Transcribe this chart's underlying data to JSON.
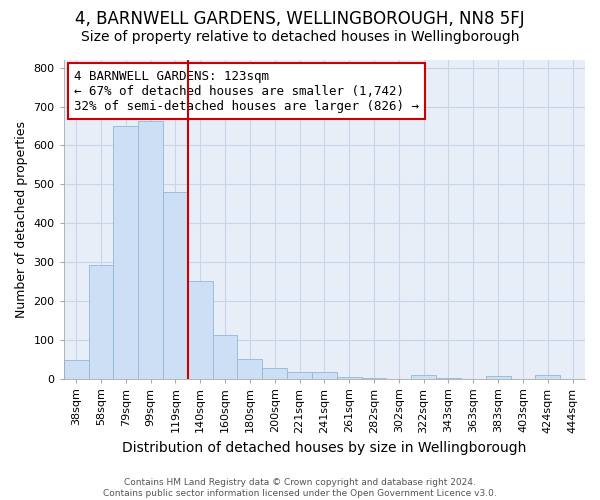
{
  "title": "4, BARNWELL GARDENS, WELLINGBOROUGH, NN8 5FJ",
  "subtitle": "Size of property relative to detached houses in Wellingborough",
  "xlabel": "Distribution of detached houses by size in Wellingborough",
  "ylabel": "Number of detached properties",
  "categories": [
    "38sqm",
    "58sqm",
    "79sqm",
    "99sqm",
    "119sqm",
    "140sqm",
    "160sqm",
    "180sqm",
    "200sqm",
    "221sqm",
    "241sqm",
    "261sqm",
    "282sqm",
    "302sqm",
    "322sqm",
    "343sqm",
    "363sqm",
    "383sqm",
    "403sqm",
    "424sqm",
    "444sqm"
  ],
  "values": [
    47,
    293,
    651,
    663,
    480,
    252,
    113,
    51,
    28,
    18,
    17,
    5,
    1,
    0,
    8,
    1,
    0,
    7,
    0,
    8,
    0
  ],
  "bar_color": "#ccdff5",
  "bar_edge_color": "#90b8d8",
  "grid_color": "#c8d4e8",
  "bg_color": "#e8eef8",
  "fig_color": "#ffffff",
  "vline_x": 4.5,
  "vline_color": "#cc0000",
  "annotation_text": "4 BARNWELL GARDENS: 123sqm\n← 67% of detached houses are smaller (1,742)\n32% of semi-detached houses are larger (826) →",
  "annotation_box_color": "#cc0000",
  "footer": "Contains HM Land Registry data © Crown copyright and database right 2024.\nContains public sector information licensed under the Open Government Licence v3.0.",
  "ylim": [
    0,
    820
  ],
  "yticks": [
    0,
    100,
    200,
    300,
    400,
    500,
    600,
    700,
    800
  ],
  "title_fontsize": 12,
  "subtitle_fontsize": 10,
  "ylabel_fontsize": 9,
  "xlabel_fontsize": 10,
  "tick_fontsize": 8,
  "footer_fontsize": 6.5,
  "annot_fontsize": 9
}
